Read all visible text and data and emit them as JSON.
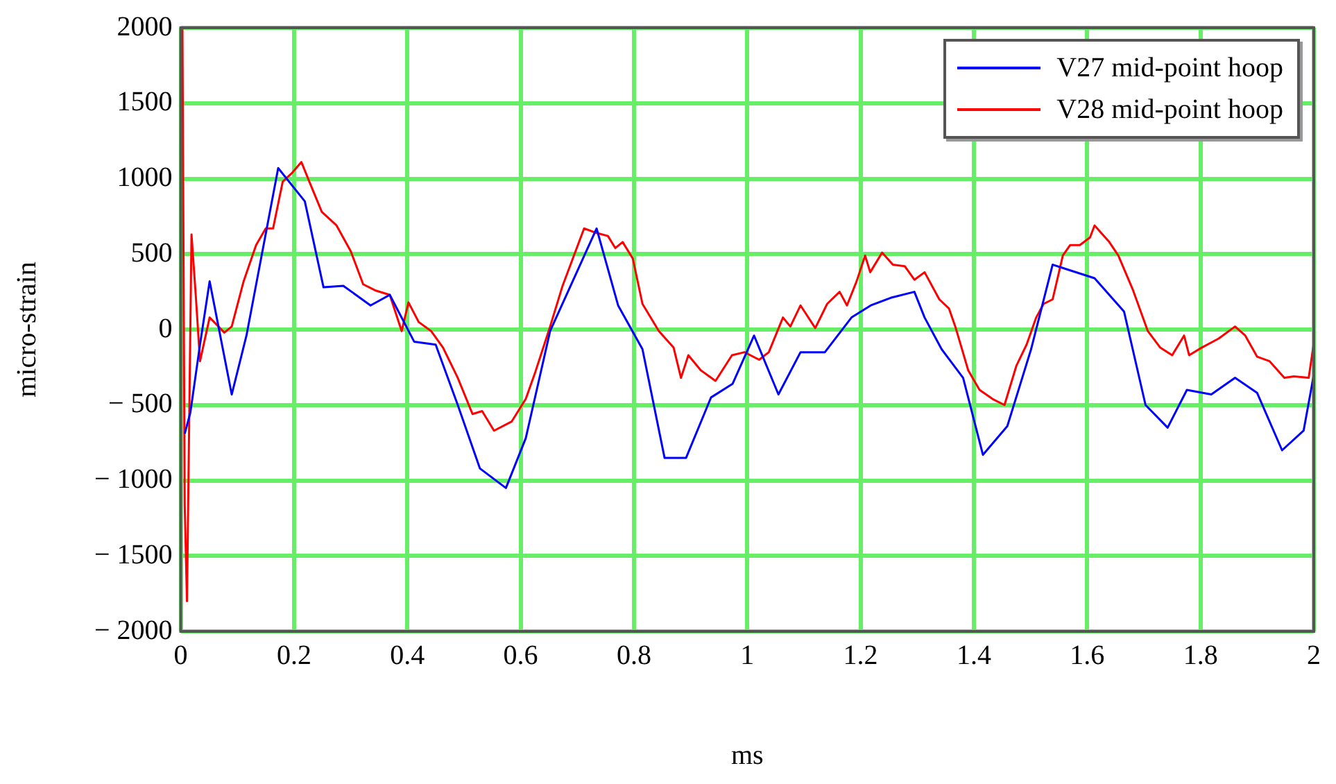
{
  "chart_data": {
    "type": "line",
    "xlabel": "ms",
    "ylabel": "micro-strain",
    "xlim": [
      0,
      2
    ],
    "ylim": [
      -2000,
      2000
    ],
    "xticks": [
      0,
      0.2,
      0.4,
      0.6,
      0.8,
      1,
      1.2,
      1.4,
      1.6,
      1.8,
      2
    ],
    "yticks": [
      {
        "value": -2000,
        "label": "− 2000"
      },
      {
        "value": -1500,
        "label": "− 1500"
      },
      {
        "value": -1000,
        "label": "− 1000"
      },
      {
        "value": -500,
        "label": "− 500"
      },
      0,
      500,
      1000,
      1500,
      2000
    ],
    "grid": true,
    "legend": "top right",
    "marker": "none",
    "line_style": "solid",
    "series": [
      {
        "name": "V27 mid-point hoop",
        "color": "#0000ff",
        "x": [
          0.007,
          0.017,
          0.034,
          0.051,
          0.09,
          0.116,
          0.172,
          0.219,
          0.252,
          0.287,
          0.335,
          0.369,
          0.412,
          0.45,
          0.489,
          0.528,
          0.574,
          0.609,
          0.652,
          0.734,
          0.772,
          0.815,
          0.854,
          0.892,
          0.936,
          0.974,
          1.012,
          1.055,
          1.094,
          1.137,
          1.184,
          1.218,
          1.253,
          1.295,
          1.313,
          1.343,
          1.381,
          1.416,
          1.459,
          1.501,
          1.539,
          1.613,
          1.665,
          1.703,
          1.742,
          1.776,
          1.819,
          1.861,
          1.9,
          1.944,
          1.982,
          2.0
        ],
        "values": [
          -690,
          -550,
          -100,
          320,
          -430,
          -40,
          1070,
          850,
          280,
          290,
          160,
          230,
          -80,
          -100,
          -500,
          -920,
          -1050,
          -720,
          -10,
          670,
          160,
          -130,
          -850,
          -850,
          -450,
          -360,
          -40,
          -430,
          -150,
          -150,
          80,
          160,
          210,
          250,
          80,
          -130,
          -320,
          -830,
          -640,
          -130,
          430,
          340,
          120,
          -500,
          -650,
          -400,
          -430,
          -320,
          -420,
          -800,
          -670,
          -300
        ]
      },
      {
        "name": "V28 mid-point hoop",
        "color": "#ff0000",
        "x": [
          0.003,
          0.007,
          0.011,
          0.019,
          0.027,
          0.034,
          0.051,
          0.077,
          0.09,
          0.111,
          0.133,
          0.15,
          0.163,
          0.18,
          0.197,
          0.213,
          0.227,
          0.249,
          0.275,
          0.3,
          0.322,
          0.343,
          0.369,
          0.39,
          0.402,
          0.42,
          0.442,
          0.463,
          0.489,
          0.515,
          0.532,
          0.553,
          0.584,
          0.609,
          0.626,
          0.652,
          0.674,
          0.712,
          0.734,
          0.754,
          0.767,
          0.78,
          0.798,
          0.815,
          0.844,
          0.87,
          0.883,
          0.896,
          0.918,
          0.944,
          0.973,
          0.995,
          1.021,
          1.038,
          1.063,
          1.076,
          1.094,
          1.12,
          1.141,
          1.163,
          1.176,
          1.193,
          1.208,
          1.217,
          1.238,
          1.257,
          1.278,
          1.295,
          1.313,
          1.339,
          1.356,
          1.368,
          1.39,
          1.41,
          1.433,
          1.454,
          1.475,
          1.493,
          1.51,
          1.523,
          1.539,
          1.557,
          1.57,
          1.587,
          1.605,
          1.613,
          1.639,
          1.655,
          1.681,
          1.707,
          1.729,
          1.75,
          1.771,
          1.78,
          1.802,
          1.832,
          1.861,
          1.879,
          1.9,
          1.922,
          1.948,
          1.965,
          1.991,
          2.0
        ],
        "values": [
          1990,
          -1160,
          -1800,
          630,
          200,
          -210,
          80,
          -20,
          20,
          320,
          560,
          670,
          670,
          980,
          1040,
          1110,
          980,
          780,
          690,
          520,
          300,
          260,
          230,
          -10,
          180,
          50,
          -10,
          -120,
          -320,
          -560,
          -540,
          -670,
          -610,
          -460,
          -280,
          20,
          290,
          670,
          640,
          620,
          540,
          580,
          470,
          170,
          -10,
          -120,
          -320,
          -170,
          -270,
          -340,
          -170,
          -150,
          -200,
          -150,
          80,
          20,
          160,
          10,
          170,
          250,
          160,
          320,
          490,
          380,
          510,
          430,
          420,
          330,
          380,
          200,
          140,
          10,
          -270,
          -400,
          -460,
          -500,
          -240,
          -100,
          80,
          170,
          200,
          490,
          560,
          560,
          610,
          690,
          580,
          490,
          260,
          -10,
          -120,
          -170,
          -40,
          -170,
          -120,
          -60,
          20,
          -40,
          -180,
          -210,
          -320,
          -310,
          -320,
          -90
        ]
      }
    ]
  }
}
